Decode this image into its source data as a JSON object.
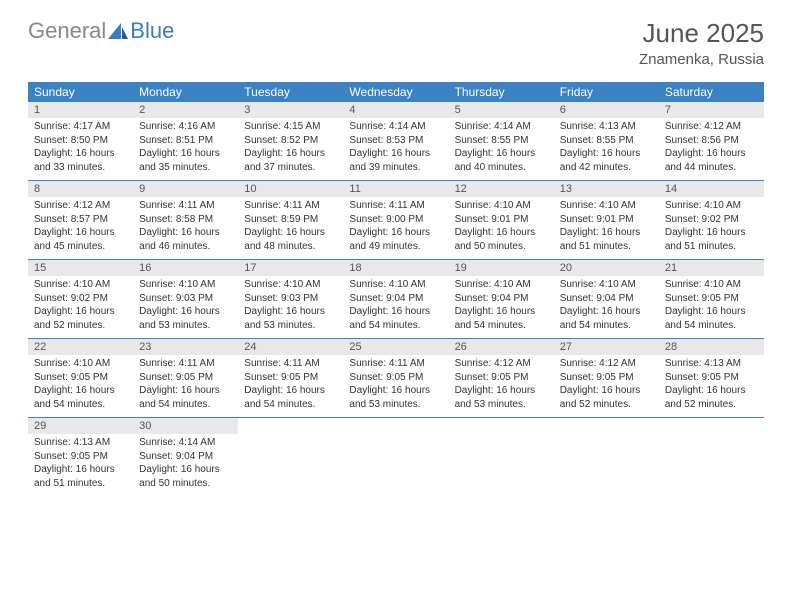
{
  "logo": {
    "part1": "General",
    "part2": "Blue"
  },
  "title": "June 2025",
  "location": "Znamenka, Russia",
  "colors": {
    "header_bg": "#3b82c4",
    "header_text": "#ffffff",
    "daynum_bg": "#e8e8e8",
    "text_gray": "#555555",
    "logo_gray": "#888888",
    "logo_blue": "#3b7bbf",
    "border": "#3b82c4"
  },
  "fonts": {
    "title_size": 26,
    "location_size": 15,
    "dayhead_size": 12,
    "daynum_size": 11,
    "body_size": 10
  },
  "dayheads": [
    "Sunday",
    "Monday",
    "Tuesday",
    "Wednesday",
    "Thursday",
    "Friday",
    "Saturday"
  ],
  "weeks": [
    [
      {
        "n": "1",
        "sr": "4:17 AM",
        "ss": "8:50 PM",
        "dl": "16 hours and 33 minutes."
      },
      {
        "n": "2",
        "sr": "4:16 AM",
        "ss": "8:51 PM",
        "dl": "16 hours and 35 minutes."
      },
      {
        "n": "3",
        "sr": "4:15 AM",
        "ss": "8:52 PM",
        "dl": "16 hours and 37 minutes."
      },
      {
        "n": "4",
        "sr": "4:14 AM",
        "ss": "8:53 PM",
        "dl": "16 hours and 39 minutes."
      },
      {
        "n": "5",
        "sr": "4:14 AM",
        "ss": "8:55 PM",
        "dl": "16 hours and 40 minutes."
      },
      {
        "n": "6",
        "sr": "4:13 AM",
        "ss": "8:55 PM",
        "dl": "16 hours and 42 minutes."
      },
      {
        "n": "7",
        "sr": "4:12 AM",
        "ss": "8:56 PM",
        "dl": "16 hours and 44 minutes."
      }
    ],
    [
      {
        "n": "8",
        "sr": "4:12 AM",
        "ss": "8:57 PM",
        "dl": "16 hours and 45 minutes."
      },
      {
        "n": "9",
        "sr": "4:11 AM",
        "ss": "8:58 PM",
        "dl": "16 hours and 46 minutes."
      },
      {
        "n": "10",
        "sr": "4:11 AM",
        "ss": "8:59 PM",
        "dl": "16 hours and 48 minutes."
      },
      {
        "n": "11",
        "sr": "4:11 AM",
        "ss": "9:00 PM",
        "dl": "16 hours and 49 minutes."
      },
      {
        "n": "12",
        "sr": "4:10 AM",
        "ss": "9:01 PM",
        "dl": "16 hours and 50 minutes."
      },
      {
        "n": "13",
        "sr": "4:10 AM",
        "ss": "9:01 PM",
        "dl": "16 hours and 51 minutes."
      },
      {
        "n": "14",
        "sr": "4:10 AM",
        "ss": "9:02 PM",
        "dl": "16 hours and 51 minutes."
      }
    ],
    [
      {
        "n": "15",
        "sr": "4:10 AM",
        "ss": "9:02 PM",
        "dl": "16 hours and 52 minutes."
      },
      {
        "n": "16",
        "sr": "4:10 AM",
        "ss": "9:03 PM",
        "dl": "16 hours and 53 minutes."
      },
      {
        "n": "17",
        "sr": "4:10 AM",
        "ss": "9:03 PM",
        "dl": "16 hours and 53 minutes."
      },
      {
        "n": "18",
        "sr": "4:10 AM",
        "ss": "9:04 PM",
        "dl": "16 hours and 54 minutes."
      },
      {
        "n": "19",
        "sr": "4:10 AM",
        "ss": "9:04 PM",
        "dl": "16 hours and 54 minutes."
      },
      {
        "n": "20",
        "sr": "4:10 AM",
        "ss": "9:04 PM",
        "dl": "16 hours and 54 minutes."
      },
      {
        "n": "21",
        "sr": "4:10 AM",
        "ss": "9:05 PM",
        "dl": "16 hours and 54 minutes."
      }
    ],
    [
      {
        "n": "22",
        "sr": "4:10 AM",
        "ss": "9:05 PM",
        "dl": "16 hours and 54 minutes."
      },
      {
        "n": "23",
        "sr": "4:11 AM",
        "ss": "9:05 PM",
        "dl": "16 hours and 54 minutes."
      },
      {
        "n": "24",
        "sr": "4:11 AM",
        "ss": "9:05 PM",
        "dl": "16 hours and 54 minutes."
      },
      {
        "n": "25",
        "sr": "4:11 AM",
        "ss": "9:05 PM",
        "dl": "16 hours and 53 minutes."
      },
      {
        "n": "26",
        "sr": "4:12 AM",
        "ss": "9:05 PM",
        "dl": "16 hours and 53 minutes."
      },
      {
        "n": "27",
        "sr": "4:12 AM",
        "ss": "9:05 PM",
        "dl": "16 hours and 52 minutes."
      },
      {
        "n": "28",
        "sr": "4:13 AM",
        "ss": "9:05 PM",
        "dl": "16 hours and 52 minutes."
      }
    ],
    [
      {
        "n": "29",
        "sr": "4:13 AM",
        "ss": "9:05 PM",
        "dl": "16 hours and 51 minutes."
      },
      {
        "n": "30",
        "sr": "4:14 AM",
        "ss": "9:04 PM",
        "dl": "16 hours and 50 minutes."
      },
      null,
      null,
      null,
      null,
      null
    ]
  ],
  "labels": {
    "sunrise": "Sunrise: ",
    "sunset": "Sunset: ",
    "daylight": "Daylight: "
  }
}
